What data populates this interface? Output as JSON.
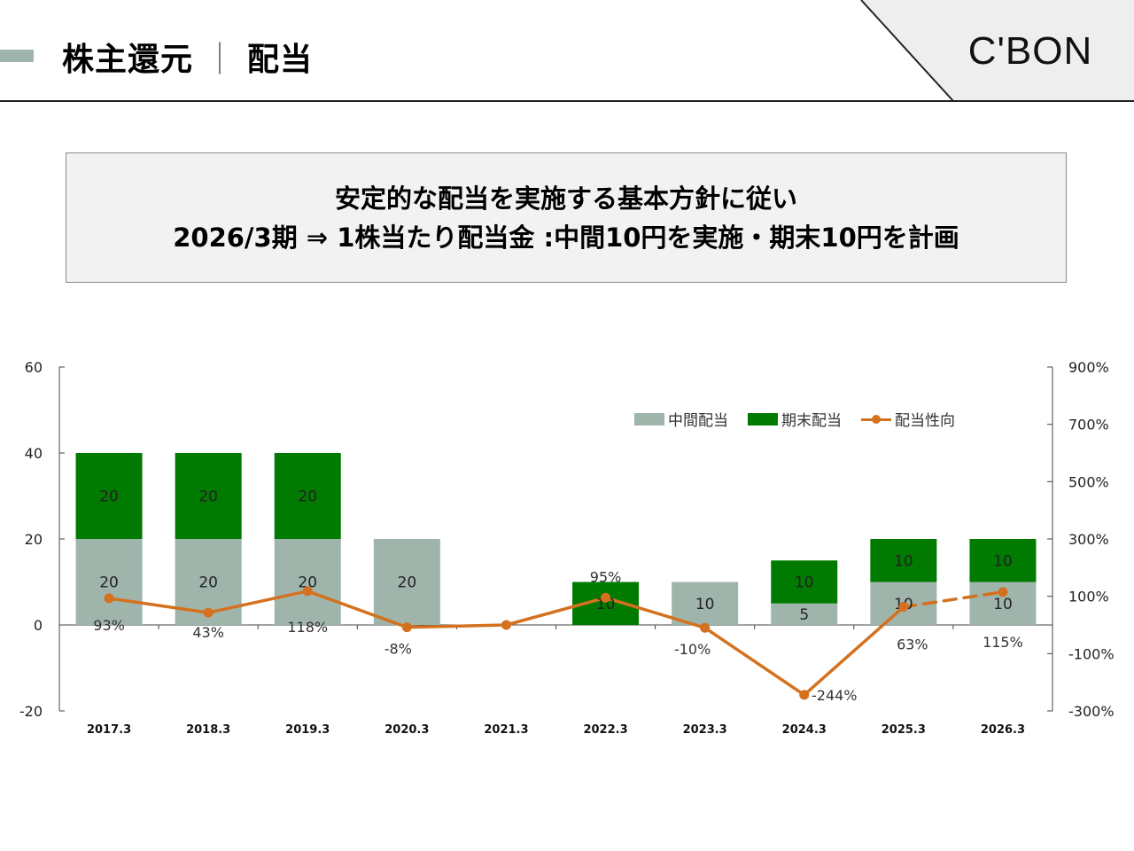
{
  "header": {
    "title_main": "株主還元",
    "title_sep": "｜",
    "title_sub": "配当",
    "logo": "C'BON"
  },
  "message": {
    "line1": "安定的な配当を実施する基本方針に従い",
    "line2": "2026/3期 ⇒ 1株当たり配当金 :中間10円を実施・期末10円を計画"
  },
  "colors": {
    "interim": "#9fb5ab",
    "year_end": "#007a00",
    "payout": "#d4711f",
    "accent": "#9fb5ab"
  },
  "chart_data": {
    "type": "bar",
    "categories": [
      "2017.3",
      "2018.3",
      "2019.3",
      "2020.3",
      "2021.3",
      "2022.3",
      "2023.3",
      "2024.3",
      "2025.3",
      "2026.3"
    ],
    "stacked": true,
    "series": [
      {
        "name": "中間配当",
        "values": [
          20,
          20,
          20,
          20,
          0,
          0,
          10,
          5,
          10,
          10
        ]
      },
      {
        "name": "期末配当",
        "values": [
          20,
          20,
          20,
          0,
          0,
          10,
          0,
          10,
          10,
          10
        ]
      }
    ],
    "bar_labels": [
      [
        "20",
        "20",
        "20",
        "20",
        "",
        "",
        "10",
        "5",
        "10",
        "10"
      ],
      [
        "20",
        "20",
        "20",
        "",
        "",
        "10",
        "",
        "10",
        "10",
        "10"
      ]
    ],
    "line_series": {
      "name": "配当性向",
      "values": [
        93,
        43,
        118,
        -8,
        0,
        95,
        -10,
        -244,
        63,
        115
      ],
      "labels": [
        "93%",
        "43%",
        "118%",
        "-8%",
        "",
        "95%",
        "-10%",
        "-244%",
        "63%",
        "115%"
      ],
      "dashed_from_index": 8
    },
    "y_left": {
      "ylim": [
        -20,
        60
      ],
      "ticks": [
        "-20",
        "0",
        "20",
        "40",
        "60"
      ]
    },
    "y_right": {
      "ylim": [
        -300,
        900
      ],
      "ticks": [
        "-300%",
        "-100%",
        "100%",
        "300%",
        "500%",
        "700%",
        "900%"
      ]
    },
    "legend_position": "top-right"
  }
}
